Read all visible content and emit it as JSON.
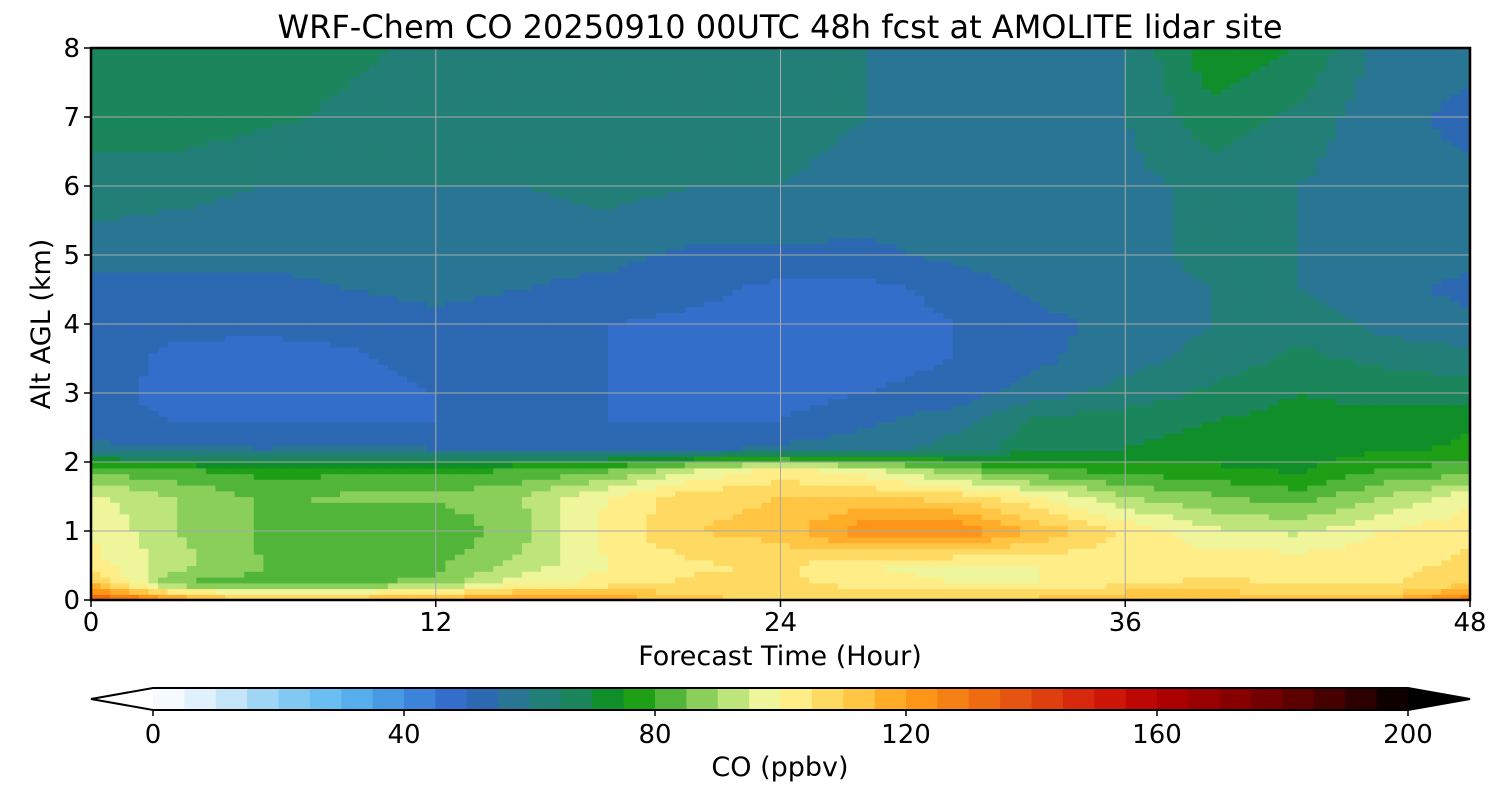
{
  "chart_data": {
    "type": "heatmap",
    "title": "WRF-Chem CO  20250910 00UTC 48h fcst at AMOLITE lidar site",
    "xlabel": "Forecast Time (Hour)",
    "ylabel": "Alt AGL (km)",
    "xlim": [
      0,
      48
    ],
    "ylim": [
      0,
      8
    ],
    "xticks": [
      0,
      12,
      24,
      36,
      48
    ],
    "yticks": [
      0,
      1,
      2,
      3,
      4,
      5,
      6,
      7,
      8
    ],
    "grid": true,
    "x": [
      0,
      3,
      6,
      9,
      12,
      15,
      18,
      21,
      24,
      27,
      30,
      33,
      36,
      39,
      42,
      45,
      48
    ],
    "y": [
      0,
      0.25,
      0.5,
      1.0,
      1.5,
      1.9,
      2.2,
      2.6,
      3.0,
      3.5,
      4.0,
      4.5,
      5.0,
      6.0,
      7.0,
      8.0
    ],
    "z": [
      [
        140,
        122,
        110,
        114,
        118,
        124,
        120,
        112,
        108,
        110,
        110,
        112,
        116,
        116,
        112,
        112,
        130
      ],
      [
        112,
        84,
        83,
        84,
        86,
        98,
        102,
        106,
        106,
        103,
        100,
        100,
        104,
        106,
        104,
        104,
        108
      ],
      [
        102,
        92,
        85,
        84,
        84,
        92,
        100,
        104,
        106,
        100,
        98,
        100,
        102,
        104,
        104,
        104,
        106
      ],
      [
        100,
        90,
        84,
        82,
        80,
        88,
        102,
        110,
        112,
        124,
        126,
        114,
        104,
        96,
        94,
        100,
        104
      ],
      [
        96,
        90,
        84,
        86,
        86,
        90,
        100,
        108,
        110,
        110,
        108,
        100,
        90,
        86,
        82,
        90,
        98
      ],
      [
        84,
        80,
        78,
        78,
        78,
        80,
        84,
        94,
        102,
        96,
        86,
        80,
        78,
        76,
        74,
        80,
        82
      ],
      [
        56,
        56,
        55,
        56,
        55,
        55,
        54,
        54,
        56,
        58,
        62,
        68,
        70,
        72,
        72,
        74,
        76
      ],
      [
        52,
        50,
        50,
        50,
        50,
        50,
        50,
        50,
        50,
        54,
        58,
        66,
        68,
        70,
        72,
        72,
        74
      ],
      [
        52,
        48,
        48,
        48,
        50,
        50,
        50,
        48,
        48,
        50,
        52,
        58,
        62,
        66,
        70,
        68,
        68
      ],
      [
        54,
        48,
        48,
        49,
        52,
        52,
        50,
        48,
        48,
        48,
        50,
        54,
        58,
        62,
        66,
        64,
        62
      ],
      [
        54,
        52,
        51,
        52,
        54,
        52,
        50,
        48,
        46,
        46,
        50,
        54,
        56,
        60,
        64,
        58,
        56
      ],
      [
        54,
        54,
        54,
        55,
        56,
        55,
        54,
        52,
        48,
        48,
        52,
        56,
        56,
        60,
        60,
        56,
        54
      ],
      [
        56,
        56,
        56,
        56,
        57,
        56,
        56,
        54,
        54,
        54,
        56,
        58,
        58,
        62,
        60,
        56,
        56
      ],
      [
        64,
        62,
        60,
        60,
        60,
        60,
        62,
        60,
        60,
        58,
        58,
        58,
        58,
        62,
        60,
        56,
        56
      ],
      [
        66,
        68,
        66,
        64,
        62,
        60,
        62,
        64,
        62,
        60,
        58,
        58,
        60,
        68,
        64,
        56,
        54
      ],
      [
        68,
        70,
        68,
        66,
        64,
        60,
        62,
        64,
        62,
        60,
        58,
        58,
        60,
        74,
        70,
        58,
        56
      ]
    ],
    "colorbar": {
      "label": "CO  (ppbv)",
      "min": 0,
      "max": 200,
      "step": 5,
      "ticks": [
        0,
        40,
        80,
        120,
        160,
        200
      ],
      "extend": "both"
    },
    "colormap": [
      [
        0,
        "#ffffff"
      ],
      [
        10,
        "#d6ecf9"
      ],
      [
        20,
        "#8ccff4"
      ],
      [
        30,
        "#5fb8f0"
      ],
      [
        40,
        "#3f8fe0"
      ],
      [
        50,
        "#2f63c2"
      ],
      [
        60,
        "#257c85"
      ],
      [
        70,
        "#17884d"
      ],
      [
        75,
        "#079404"
      ],
      [
        82,
        "#4ab236"
      ],
      [
        90,
        "#a5dc6a"
      ],
      [
        97,
        "#ecf59a"
      ],
      [
        100,
        "#fff69a"
      ],
      [
        110,
        "#ffd150"
      ],
      [
        120,
        "#ff9f1a"
      ],
      [
        130,
        "#f27612"
      ],
      [
        140,
        "#e04a10"
      ],
      [
        150,
        "#d51c0a"
      ],
      [
        160,
        "#b50000"
      ],
      [
        175,
        "#7d0000"
      ],
      [
        190,
        "#3c0000"
      ],
      [
        200,
        "#000000"
      ]
    ]
  }
}
